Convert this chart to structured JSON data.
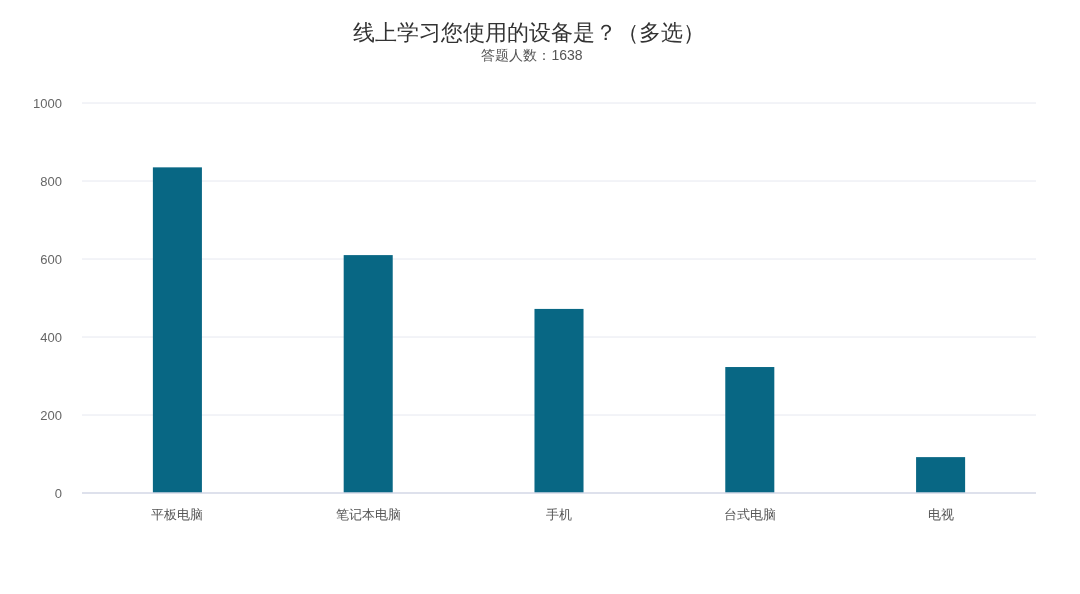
{
  "chart_data": {
    "type": "bar",
    "title": "线上学习您使用的设备是？（多选）",
    "subtitle": "答题人数：1638",
    "categories": [
      "平板电脑",
      "笔记本电脑",
      "手机",
      "台式电脑",
      "电视"
    ],
    "values": [
      835,
      610,
      472,
      323,
      92
    ],
    "color": "#086784",
    "ylim": [
      0,
      1000
    ],
    "yticks": [
      0,
      200,
      400,
      600,
      800,
      1000
    ],
    "grid": "y",
    "legend": false
  }
}
